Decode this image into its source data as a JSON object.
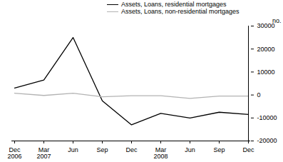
{
  "chart_data": {
    "type": "line",
    "categories": [
      "Dec 2006",
      "Mar 2007",
      "Jun",
      "Sep",
      "Dec",
      "Mar 2008",
      "Jun",
      "Sep",
      "Dec"
    ],
    "series": [
      {
        "name": "Assets, Loans, residential mortgages",
        "color": "#000000",
        "values": [
          3000,
          6500,
          25000,
          -2500,
          -13000,
          -8000,
          -10000,
          -7500,
          -8500
        ]
      },
      {
        "name": "Assets, Loans, non-residential mortgages",
        "color": "#b3b3b3",
        "values": [
          800,
          -200,
          800,
          -800,
          -300,
          -300,
          -1500,
          -500,
          -500
        ]
      }
    ],
    "y_label": "no.",
    "ylim": [
      -20000,
      30000
    ],
    "yticks": [
      -20000,
      -10000,
      0,
      10000,
      20000,
      30000
    ],
    "grid": false,
    "legend": "top-left"
  }
}
